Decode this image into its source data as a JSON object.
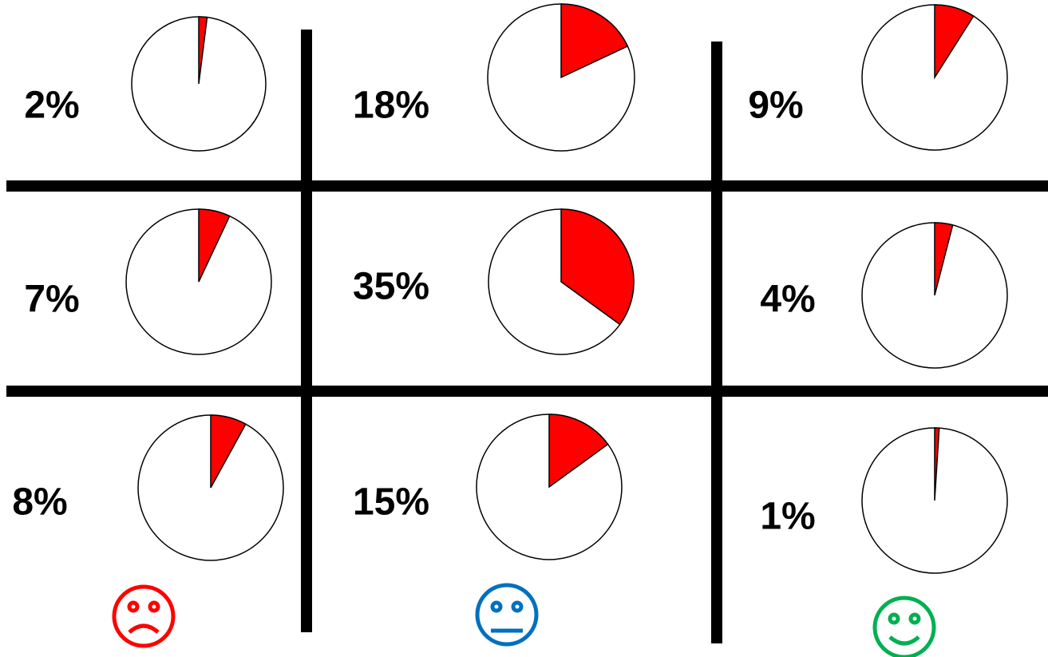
{
  "chart_data": [
    {
      "type": "pie",
      "values": [
        2
      ],
      "value_labels": [
        "2%"
      ],
      "color": "#ff0000"
    },
    {
      "type": "pie",
      "values": [
        18
      ],
      "value_labels": [
        "18%"
      ],
      "color": "#ff0000"
    },
    {
      "type": "pie",
      "values": [
        9
      ],
      "value_labels": [
        "9%"
      ],
      "color": "#ff0000"
    },
    {
      "type": "pie",
      "values": [
        7
      ],
      "value_labels": [
        "7%"
      ],
      "color": "#ff0000"
    },
    {
      "type": "pie",
      "values": [
        35
      ],
      "value_labels": [
        "35%"
      ],
      "color": "#ff0000"
    },
    {
      "type": "pie",
      "values": [
        4
      ],
      "value_labels": [
        "4%"
      ],
      "color": "#ff0000"
    },
    {
      "type": "pie",
      "values": [
        8
      ],
      "value_labels": [
        "8%"
      ],
      "color": "#ff0000"
    },
    {
      "type": "pie",
      "values": [
        15
      ],
      "value_labels": [
        "15%"
      ],
      "color": "#ff0000"
    },
    {
      "type": "pie",
      "values": [
        1
      ],
      "value_labels": [
        "1%"
      ],
      "color": "#ff0000"
    }
  ]
}
